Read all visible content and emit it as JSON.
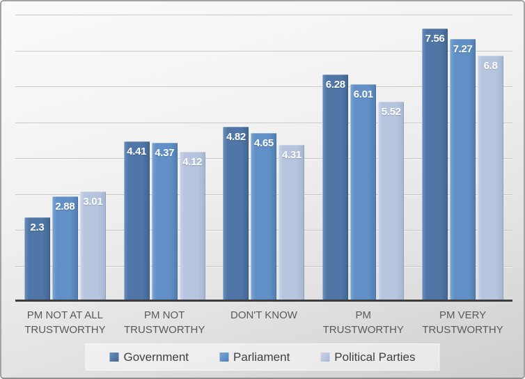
{
  "chart_data": {
    "type": "bar",
    "title": "",
    "xlabel": "",
    "ylabel": "",
    "ylim": [
      0,
      8
    ],
    "gridline_step": 1,
    "grid": true,
    "legend_position": "bottom",
    "categories": [
      "PM NOT AT ALL TRUSTWORTHY",
      "PM NOT TRUSTWORTHY",
      "DON'T KNOW",
      "PM TRUSTWORTHY",
      "PM VERY TRUSTWORTHY"
    ],
    "series": [
      {
        "name": "Government",
        "color": "#4f76a6",
        "color_light": "#6d90ba",
        "color_dark": "#40658f",
        "values": [
          2.3,
          4.41,
          4.82,
          6.28,
          7.56
        ]
      },
      {
        "name": "Parliament",
        "color": "#6090c5",
        "color_light": "#7ea6d3",
        "color_dark": "#507db1",
        "values": [
          2.88,
          4.37,
          4.65,
          6.01,
          7.27
        ]
      },
      {
        "name": "Political Parties",
        "color": "#b6c4de",
        "color_light": "#c9d4e9",
        "color_dark": "#a4b5d2",
        "values": [
          3.01,
          4.12,
          4.31,
          5.52,
          6.8
        ]
      }
    ],
    "value_label_color": "#ffffff",
    "gridline_color": "#c6c6c6",
    "axis_color": "#3c3c3c",
    "category_label_color": "#595959",
    "legend_label_color": "#3f3f3f"
  }
}
